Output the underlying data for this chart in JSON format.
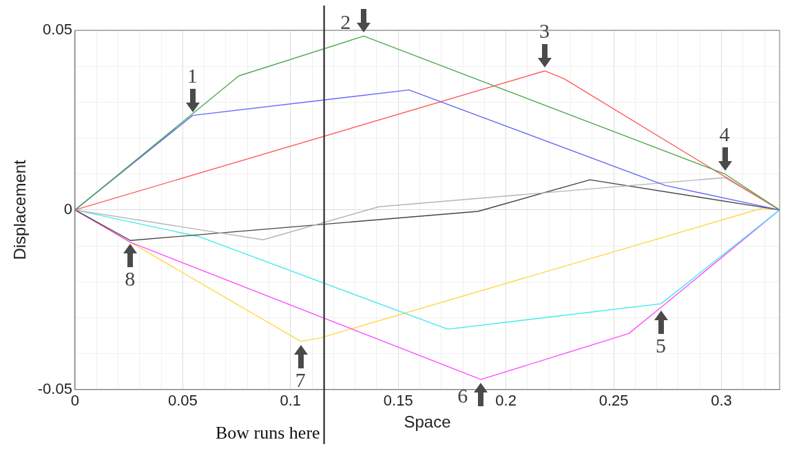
{
  "chart_data": {
    "type": "line",
    "xlabel": "Space",
    "ylabel": "Displacement",
    "xlim": [
      0,
      0.327
    ],
    "ylim": [
      -0.05,
      0.05
    ],
    "xticks": [
      0,
      {
        "value": 0.01,
        "label": null
      },
      {
        "value": 0.02,
        "label": null
      },
      {
        "value": 0.03,
        "label": null
      },
      {
        "value": 0.04,
        "label": null
      },
      0.05,
      {
        "value": 0.06,
        "label": null
      },
      {
        "value": 0.07,
        "label": null
      },
      {
        "value": 0.08,
        "label": null
      },
      {
        "value": 0.09,
        "label": null
      },
      0.1,
      {
        "value": 0.11,
        "label": null
      },
      {
        "value": 0.12,
        "label": null
      },
      {
        "value": 0.13,
        "label": null
      },
      {
        "value": 0.14,
        "label": null
      },
      0.15,
      {
        "value": 0.16,
        "label": null
      },
      {
        "value": 0.17,
        "label": null
      },
      {
        "value": 0.18,
        "label": null
      },
      {
        "value": 0.19,
        "label": null
      },
      0.2,
      {
        "value": 0.21,
        "label": null
      },
      {
        "value": 0.22,
        "label": null
      },
      {
        "value": 0.23,
        "label": null
      },
      {
        "value": 0.24,
        "label": null
      },
      0.25,
      {
        "value": 0.26,
        "label": null
      },
      {
        "value": 0.27,
        "label": null
      },
      {
        "value": 0.28,
        "label": null
      },
      {
        "value": 0.29,
        "label": null
      },
      0.3,
      {
        "value": 0.31,
        "label": null
      },
      {
        "value": 0.32,
        "label": null
      }
    ],
    "yticks": [
      -0.05,
      {
        "value": -0.04,
        "label": null
      },
      {
        "value": -0.03,
        "label": null
      },
      {
        "value": -0.02,
        "label": null
      },
      {
        "value": -0.01,
        "label": null
      },
      0,
      {
        "value": 0.01,
        "label": null
      },
      {
        "value": 0.02,
        "label": null
      },
      {
        "value": 0.03,
        "label": null
      },
      {
        "value": 0.04,
        "label": null
      },
      0.05
    ],
    "grid": true,
    "legend": false,
    "marker": "none",
    "line_style": "solid",
    "series": [
      {
        "color": "#4fa84f",
        "x": [
          0,
          0.076,
          0.134,
          0.3016,
          0.327
        ],
        "values": [
          0,
          0.0373,
          0.0484,
          0.01,
          0
        ]
      },
      {
        "color": "#6464ff",
        "x": [
          0,
          0.0546,
          0.155,
          0.274,
          0.327
        ],
        "values": [
          0,
          0.0263,
          0.0334,
          0.0068,
          0
        ]
      },
      {
        "color": "#ff5a5a",
        "x": [
          0,
          0.218,
          0.227,
          0.327
        ],
        "values": [
          0,
          0.0387,
          0.0365,
          0
        ]
      },
      {
        "color": "#b4b4b4",
        "x": [
          0,
          0.0873,
          0.141,
          0.3016,
          0.327
        ],
        "values": [
          0,
          -0.0083,
          0.0009,
          0.009,
          0
        ]
      },
      {
        "color": "#444444",
        "x": [
          0,
          0.0257,
          0.187,
          0.239,
          0.327
        ],
        "values": [
          0,
          -0.0085,
          -0.0004,
          0.0084,
          0
        ]
      },
      {
        "color": "#3eeaf0",
        "x": [
          0,
          0.058,
          0.173,
          0.272,
          0.327
        ],
        "values": [
          0,
          -0.0075,
          -0.0332,
          -0.0261,
          0
        ]
      },
      {
        "color": "#ff4cff",
        "x": [
          0,
          0.0257,
          0.1884,
          0.257,
          0.272,
          0.327
        ],
        "values": [
          0,
          -0.009,
          -0.0472,
          -0.0344,
          -0.0271,
          0
        ]
      },
      {
        "color": "#ffd740",
        "x": [
          0,
          0.0257,
          0.1048,
          0.114,
          0.319,
          0.327
        ],
        "values": [
          0,
          -0.009,
          -0.0366,
          -0.0356,
          0.0005,
          0
        ]
      }
    ],
    "ref_lines": [
      {
        "axis": "x",
        "value": 0.1156,
        "label": "Bow runs here",
        "color": "#404040"
      }
    ],
    "annotations": [
      {
        "text": "1",
        "x": 0.0546,
        "y": 0.0263
      },
      {
        "text": "2",
        "x": 0.134,
        "y": 0.0484
      },
      {
        "text": "3",
        "x": 0.218,
        "y": 0.0387
      },
      {
        "text": "4",
        "x": 0.3016,
        "y": 0.01
      },
      {
        "text": "5",
        "x": 0.272,
        "y": -0.0271
      },
      {
        "text": "6",
        "x": 0.1884,
        "y": -0.0472
      },
      {
        "text": "7",
        "x": 0.1048,
        "y": -0.0366
      },
      {
        "text": "8",
        "x": 0.0257,
        "y": -0.0085
      }
    ]
  }
}
